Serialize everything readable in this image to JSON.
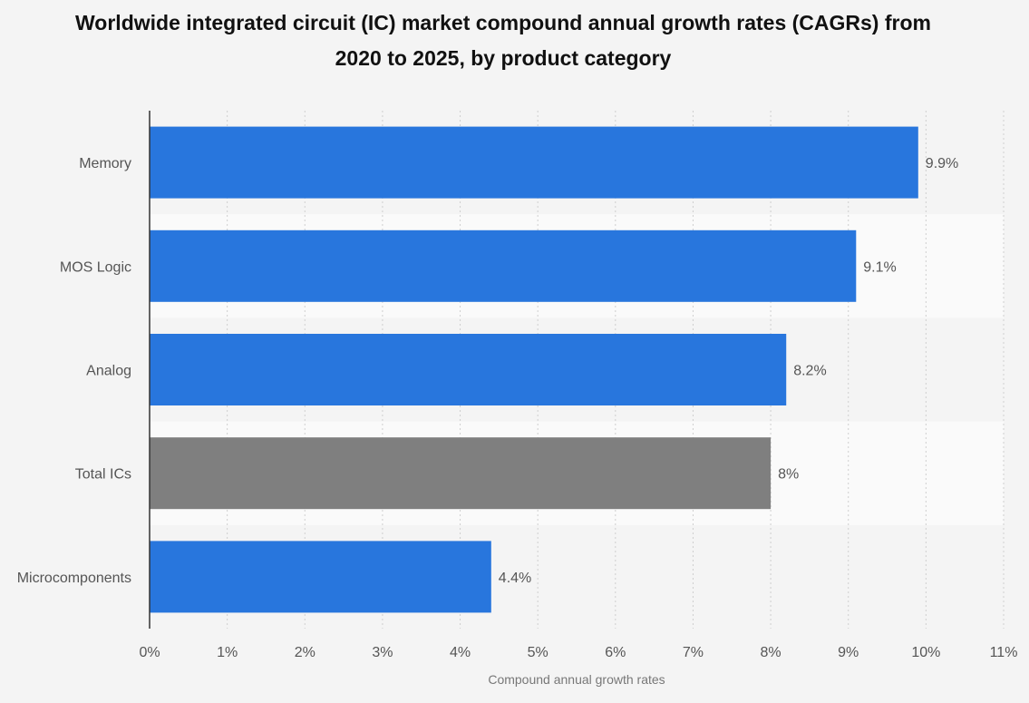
{
  "chart_data": {
    "type": "bar",
    "orientation": "horizontal",
    "title": "Worldwide integrated circuit (IC) market compound annual growth rates (CAGRs) from 2020 to 2025, by product category",
    "title_lines": [
      "Worldwide integrated circuit (IC) market compound annual growth rates (CAGRs) from",
      "2020 to 2025, by product category"
    ],
    "categories": [
      "Memory",
      "MOS Logic",
      "Analog",
      "Total ICs",
      "Microcomponents"
    ],
    "values": [
      9.9,
      9.1,
      8.2,
      8,
      4.4
    ],
    "value_labels": [
      "9.9%",
      "9.1%",
      "8.2%",
      "8%",
      "4.4%"
    ],
    "bar_colors": [
      "#2876dd",
      "#2876dd",
      "#2876dd",
      "#7f7f7f",
      "#2876dd"
    ],
    "xlabel": "Compound annual growth rates",
    "ylabel": "",
    "xlim": [
      0,
      11
    ],
    "x_ticks": [
      0,
      1,
      2,
      3,
      4,
      5,
      6,
      7,
      8,
      9,
      10,
      11
    ],
    "x_tick_labels": [
      "0%",
      "1%",
      "2%",
      "3%",
      "4%",
      "5%",
      "6%",
      "7%",
      "8%",
      "9%",
      "10%",
      "11%"
    ],
    "grid": true,
    "legend": "none"
  },
  "colors": {
    "primary_bar": "#2876dd",
    "highlight_bar": "#7f7f7f",
    "background": "#f4f4f4",
    "band_alt": "#fafafa",
    "grid": "#cfcfcf",
    "axis": "#333333",
    "label_text": "#555555",
    "axis_title_text": "#777777"
  }
}
